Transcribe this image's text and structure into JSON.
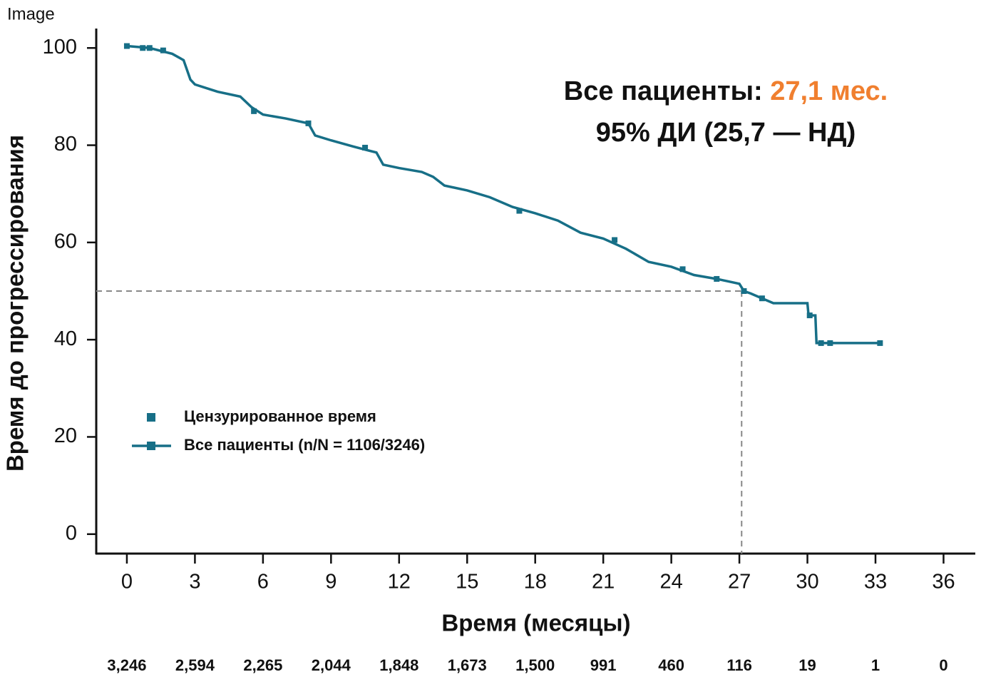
{
  "header": "Image",
  "chart_data": {
    "type": "line",
    "annotation": {
      "prefix": "Все пациенты: ",
      "highlight": "27,1 мес.",
      "highlight_color": "#f07f2f",
      "line2": "95% ДИ (25,7 — НД)"
    },
    "x_label": "Время (месяцы)",
    "y_label": "Время до прогрессирования",
    "xlim": [
      -1.35,
      37.4
    ],
    "ylim": [
      -4,
      104
    ],
    "xticks": [
      0,
      3,
      6,
      9,
      12,
      15,
      18,
      21,
      24,
      27,
      30,
      33,
      36
    ],
    "yticks": [
      0,
      20,
      40,
      60,
      80,
      100
    ],
    "reference_lines": {
      "x": 27.1,
      "y": 50
    },
    "legend": "lower left",
    "series": [
      {
        "name": "Все пациенты (n/N = 1106/3246)",
        "color": "#176f87",
        "x": [
          0,
          1,
          2,
          2.5,
          2.8,
          3,
          4,
          5,
          5.5,
          6,
          7,
          8,
          8.3,
          9,
          10,
          11,
          11.3,
          12,
          13,
          13.5,
          14,
          15,
          16,
          17,
          18,
          19,
          20,
          21,
          22,
          23,
          24,
          25,
          26,
          27,
          27.2,
          27.5,
          28,
          28.5,
          30,
          30.05,
          30.35,
          30.4,
          33.2
        ],
        "values": [
          100.4,
          100,
          98.8,
          97.5,
          93.5,
          92.5,
          91,
          90,
          87.8,
          86.3,
          85.5,
          84.5,
          82,
          81,
          79.7,
          78.5,
          76,
          75.3,
          74.5,
          73.5,
          71.7,
          70.7,
          69.3,
          67.3,
          66,
          64.5,
          62,
          60.8,
          58.7,
          56,
          55,
          53.3,
          52.5,
          51.5,
          50,
          49.5,
          48.5,
          47.5,
          47.5,
          45,
          45,
          39.3,
          39.3
        ]
      }
    ],
    "censored": {
      "name": "Цензурированное время",
      "color": "#176f87",
      "x": [
        0,
        0.7,
        1,
        1.6,
        5.6,
        8,
        10.5,
        17.3,
        21.5,
        24.5,
        26,
        27.2,
        28,
        30.1,
        30.6,
        31,
        33.2
      ],
      "y": [
        100.4,
        100,
        100,
        99.5,
        87,
        84.5,
        79.5,
        66.5,
        60.5,
        54.5,
        52.5,
        50,
        48.5,
        45,
        39.3,
        39.3,
        39.3
      ]
    },
    "at_risk": [
      {
        "value": 3246,
        "label": "3,246"
      },
      {
        "value": 2594,
        "label": "2,594"
      },
      {
        "value": 2265,
        "label": "2,265"
      },
      {
        "value": 2044,
        "label": "2,044"
      },
      {
        "value": 1848,
        "label": "1,848"
      },
      {
        "value": 1673,
        "label": "1,673"
      },
      {
        "value": 1500,
        "label": "1,500"
      },
      991,
      460,
      116,
      19,
      1,
      0
    ]
  }
}
